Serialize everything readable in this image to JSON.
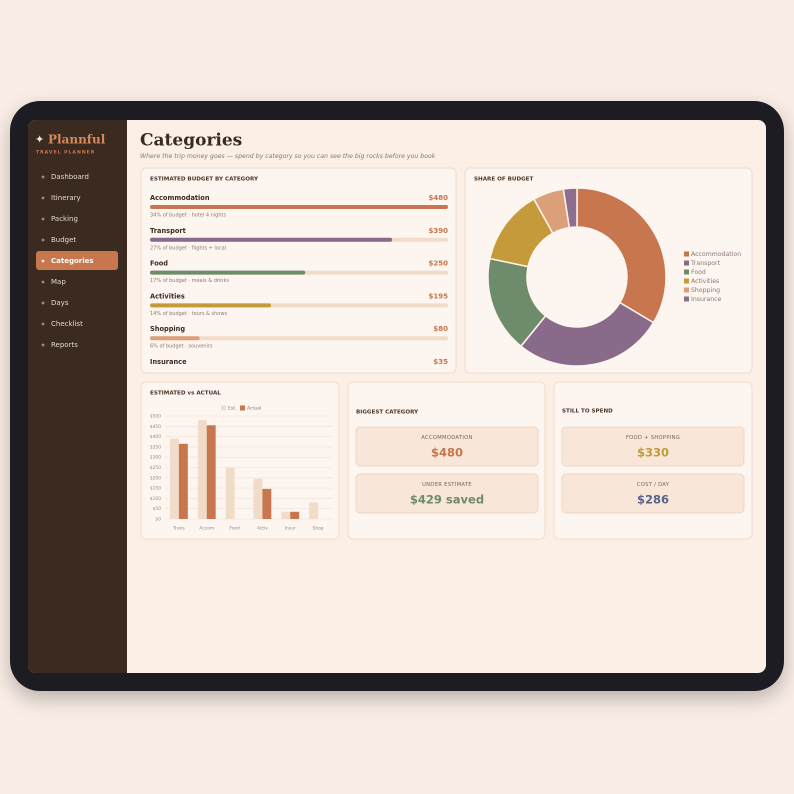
{
  "sidebar": {
    "logo": "Plannful",
    "tagline": "TRAVEL PLANNER",
    "nav": [
      "Dashboard",
      "Itinerary",
      "Packing",
      "Budget",
      "Categories",
      "Map",
      "Days",
      "Checklist",
      "Reports"
    ],
    "active": 4
  },
  "header": {
    "title": "Categories",
    "subtitle": "Where the trip money goes — spend by category so you can see the big rocks before you book"
  },
  "chart_data": [
    {
      "type": "bar",
      "orientation": "horizontal",
      "title": "ESTIMATED BUDGET BY CATEGORY",
      "categories": [
        "Accommodation",
        "Transport",
        "Food",
        "Activities",
        "Shopping",
        "Insurance"
      ],
      "values": [
        480,
        390,
        250,
        195,
        80,
        35
      ],
      "value_labels": [
        "$480",
        "$390",
        "$250",
        "$195",
        "$80",
        "$35"
      ],
      "notes": [
        "34% of budget · hotel 4 nights",
        "27% of budget · flights + local",
        "17% of budget · meals & drinks",
        "14% of budget · tours & shows",
        "6% of budget · souvenirs",
        null
      ],
      "colors": [
        "#c8764e",
        "#8a6a8a",
        "#6e8c69",
        "#c49a3a",
        "#dba07a",
        "#8e6e8e"
      ]
    },
    {
      "type": "pie",
      "donut": true,
      "title": "SHARE OF BUDGET",
      "categories": [
        "Accommodation",
        "Transport",
        "Food",
        "Activities",
        "Shopping",
        "Insurance"
      ],
      "values": [
        480,
        390,
        250,
        195,
        80,
        35
      ],
      "colors": [
        "#c8764e",
        "#8a6a8a",
        "#6e8c69",
        "#c49a3a",
        "#dba07a",
        "#8e6e8e"
      ],
      "legend": "right"
    },
    {
      "type": "bar",
      "title": "ESTIMATED vs ACTUAL",
      "categories": [
        "Trans",
        "Accom",
        "Food",
        "Activ",
        "Insur",
        "Shop"
      ],
      "series": [
        {
          "name": "Est.",
          "color": "#f0dcc8",
          "values": [
            390,
            480,
            250,
            195,
            35,
            80
          ]
        },
        {
          "name": "Actual",
          "color": "#c8764e",
          "values": [
            365,
            455,
            null,
            146,
            35,
            null
          ]
        }
      ],
      "ylim": [
        0,
        500
      ],
      "yticks": [
        {
          "value": 0,
          "label": "$0"
        },
        {
          "value": 50,
          "label": "$50"
        },
        {
          "value": 100,
          "label": "$100"
        },
        {
          "value": 150,
          "label": "$150"
        },
        {
          "value": 200,
          "label": "$200"
        },
        {
          "value": 250,
          "label": "$250"
        },
        {
          "value": 300,
          "label": "$300"
        },
        {
          "value": 350,
          "label": "$350"
        },
        {
          "value": 400,
          "label": "$400"
        },
        {
          "value": 450,
          "label": "$450"
        },
        {
          "value": 500,
          "label": "$500"
        }
      ],
      "grid": true,
      "legend": "top"
    }
  ],
  "stats": [
    {
      "title": "BIGGEST CATEGORY",
      "cards": [
        {
          "label": "ACCOMMODATION",
          "value": "$480",
          "color": "#c8764e"
        },
        {
          "label": "UNDER ESTIMATE",
          "value": "$429 saved",
          "color": "#6e8c69"
        }
      ]
    },
    {
      "title": "STILL TO SPEND",
      "cards": [
        {
          "label": "FOOD + SHOPPING",
          "value": "$330",
          "color": "#c49a3a"
        },
        {
          "label": "COST / DAY",
          "value": "$286",
          "color": "#5a6488"
        }
      ]
    }
  ]
}
